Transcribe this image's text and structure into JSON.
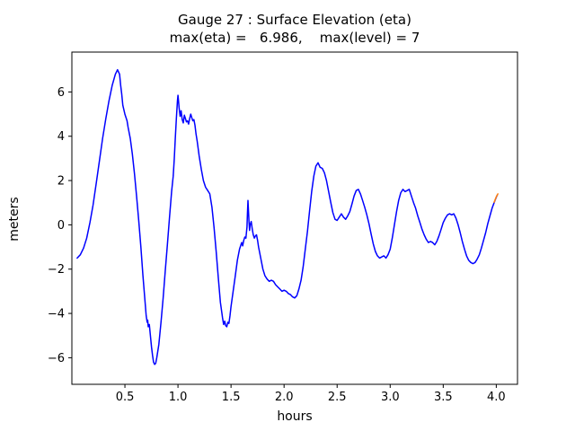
{
  "figure": {
    "title_line1": "Gauge 27 : Surface Elevation (eta)",
    "title_line2": "max(eta) =   6.986,    max(level) = 7"
  },
  "chart_data": {
    "type": "line",
    "title": "Gauge 27 : Surface Elevation (eta)",
    "subtitle": "max(eta) =   6.986,    max(level) = 7",
    "xlabel": "hours",
    "ylabel": "meters",
    "xlim": [
      0.0,
      4.2
    ],
    "ylim": [
      -7.2,
      7.8
    ],
    "grid": false,
    "legend": "none",
    "background_color": "#ffffff",
    "axes_color": "#000000",
    "x_ticks": {
      "values": [
        0.5,
        1.0,
        1.5,
        2.0,
        2.5,
        3.0,
        3.5,
        4.0
      ],
      "labels": [
        "0.5",
        "1.0",
        "1.5",
        "2.0",
        "2.5",
        "3.0",
        "3.5",
        "4.0"
      ]
    },
    "y_ticks": {
      "values": [
        -6,
        -4,
        -2,
        0,
        2,
        4,
        6
      ],
      "labels": [
        "−6",
        "−4",
        "−2",
        "0",
        "2",
        "4",
        "6"
      ]
    },
    "series": [
      {
        "name": "eta",
        "color": "#0000ff",
        "line_width": 1.5,
        "points": [
          [
            0.05,
            -1.5
          ],
          [
            0.08,
            -1.35
          ],
          [
            0.11,
            -1.05
          ],
          [
            0.14,
            -0.6
          ],
          [
            0.17,
            0.1
          ],
          [
            0.2,
            0.9
          ],
          [
            0.23,
            1.9
          ],
          [
            0.26,
            2.9
          ],
          [
            0.29,
            3.9
          ],
          [
            0.32,
            4.8
          ],
          [
            0.35,
            5.6
          ],
          [
            0.38,
            6.3
          ],
          [
            0.41,
            6.8
          ],
          [
            0.43,
            7.0
          ],
          [
            0.45,
            6.8
          ],
          [
            0.46,
            6.3
          ],
          [
            0.47,
            5.9
          ],
          [
            0.48,
            5.4
          ],
          [
            0.5,
            5.0
          ],
          [
            0.52,
            4.7
          ],
          [
            0.53,
            4.4
          ],
          [
            0.55,
            3.9
          ],
          [
            0.57,
            3.2
          ],
          [
            0.59,
            2.3
          ],
          [
            0.61,
            1.3
          ],
          [
            0.63,
            0.2
          ],
          [
            0.65,
            -1.0
          ],
          [
            0.67,
            -2.3
          ],
          [
            0.69,
            -3.5
          ],
          [
            0.7,
            -4.1
          ],
          [
            0.71,
            -4.4
          ],
          [
            0.715,
            -4.3
          ],
          [
            0.72,
            -4.6
          ],
          [
            0.73,
            -4.5
          ],
          [
            0.74,
            -5.0
          ],
          [
            0.75,
            -5.5
          ],
          [
            0.76,
            -5.9
          ],
          [
            0.77,
            -6.2
          ],
          [
            0.78,
            -6.3
          ],
          [
            0.79,
            -6.25
          ],
          [
            0.8,
            -6.0
          ],
          [
            0.82,
            -5.4
          ],
          [
            0.84,
            -4.4
          ],
          [
            0.86,
            -3.3
          ],
          [
            0.88,
            -2.1
          ],
          [
            0.9,
            -0.9
          ],
          [
            0.92,
            0.3
          ],
          [
            0.94,
            1.5
          ],
          [
            0.955,
            2.2
          ],
          [
            0.965,
            3.0
          ],
          [
            0.975,
            3.9
          ],
          [
            0.985,
            4.8
          ],
          [
            0.995,
            5.6
          ],
          [
            1.0,
            5.85
          ],
          [
            1.005,
            5.6
          ],
          [
            1.01,
            5.3
          ],
          [
            1.02,
            4.9
          ],
          [
            1.03,
            5.15
          ],
          [
            1.04,
            4.75
          ],
          [
            1.05,
            4.6
          ],
          [
            1.06,
            4.95
          ],
          [
            1.07,
            4.8
          ],
          [
            1.08,
            4.65
          ],
          [
            1.09,
            4.7
          ],
          [
            1.1,
            4.55
          ],
          [
            1.11,
            4.8
          ],
          [
            1.12,
            5.0
          ],
          [
            1.13,
            4.85
          ],
          [
            1.14,
            4.7
          ],
          [
            1.15,
            4.75
          ],
          [
            1.16,
            4.5
          ],
          [
            1.17,
            4.1
          ],
          [
            1.18,
            3.8
          ],
          [
            1.2,
            3.1
          ],
          [
            1.22,
            2.5
          ],
          [
            1.24,
            2.0
          ],
          [
            1.26,
            1.7
          ],
          [
            1.28,
            1.55
          ],
          [
            1.3,
            1.4
          ],
          [
            1.32,
            0.8
          ],
          [
            1.34,
            -0.1
          ],
          [
            1.36,
            -1.2
          ],
          [
            1.38,
            -2.4
          ],
          [
            1.4,
            -3.5
          ],
          [
            1.42,
            -4.2
          ],
          [
            1.43,
            -4.5
          ],
          [
            1.44,
            -4.35
          ],
          [
            1.45,
            -4.55
          ],
          [
            1.46,
            -4.6
          ],
          [
            1.47,
            -4.4
          ],
          [
            1.48,
            -4.45
          ],
          [
            1.49,
            -4.1
          ],
          [
            1.5,
            -3.7
          ],
          [
            1.52,
            -3.0
          ],
          [
            1.54,
            -2.3
          ],
          [
            1.56,
            -1.6
          ],
          [
            1.58,
            -1.1
          ],
          [
            1.6,
            -0.8
          ],
          [
            1.61,
            -0.95
          ],
          [
            1.62,
            -0.7
          ],
          [
            1.63,
            -0.55
          ],
          [
            1.64,
            -0.6
          ],
          [
            1.65,
            -0.1
          ],
          [
            1.655,
            0.5
          ],
          [
            1.66,
            1.1
          ],
          [
            1.665,
            0.6
          ],
          [
            1.67,
            0.1
          ],
          [
            1.675,
            -0.25
          ],
          [
            1.68,
            0.0
          ],
          [
            1.69,
            0.15
          ],
          [
            1.7,
            -0.2
          ],
          [
            1.71,
            -0.45
          ],
          [
            1.72,
            -0.6
          ],
          [
            1.73,
            -0.5
          ],
          [
            1.74,
            -0.45
          ],
          [
            1.75,
            -0.7
          ],
          [
            1.76,
            -1.0
          ],
          [
            1.78,
            -1.5
          ],
          [
            1.8,
            -2.0
          ],
          [
            1.82,
            -2.3
          ],
          [
            1.84,
            -2.45
          ],
          [
            1.86,
            -2.55
          ],
          [
            1.88,
            -2.5
          ],
          [
            1.9,
            -2.55
          ],
          [
            1.92,
            -2.7
          ],
          [
            1.94,
            -2.8
          ],
          [
            1.96,
            -2.9
          ],
          [
            1.98,
            -3.0
          ],
          [
            2.0,
            -2.95
          ],
          [
            2.02,
            -3.0
          ],
          [
            2.04,
            -3.1
          ],
          [
            2.06,
            -3.15
          ],
          [
            2.08,
            -3.25
          ],
          [
            2.1,
            -3.3
          ],
          [
            2.12,
            -3.2
          ],
          [
            2.14,
            -2.9
          ],
          [
            2.16,
            -2.5
          ],
          [
            2.18,
            -1.9
          ],
          [
            2.2,
            -1.1
          ],
          [
            2.22,
            -0.3
          ],
          [
            2.24,
            0.6
          ],
          [
            2.26,
            1.5
          ],
          [
            2.28,
            2.2
          ],
          [
            2.3,
            2.65
          ],
          [
            2.32,
            2.8
          ],
          [
            2.34,
            2.6
          ],
          [
            2.36,
            2.55
          ],
          [
            2.38,
            2.35
          ],
          [
            2.4,
            2.0
          ],
          [
            2.42,
            1.5
          ],
          [
            2.44,
            1.0
          ],
          [
            2.46,
            0.55
          ],
          [
            2.48,
            0.25
          ],
          [
            2.5,
            0.2
          ],
          [
            2.52,
            0.35
          ],
          [
            2.54,
            0.5
          ],
          [
            2.56,
            0.35
          ],
          [
            2.58,
            0.25
          ],
          [
            2.6,
            0.4
          ],
          [
            2.62,
            0.6
          ],
          [
            2.64,
            0.95
          ],
          [
            2.66,
            1.3
          ],
          [
            2.68,
            1.55
          ],
          [
            2.7,
            1.6
          ],
          [
            2.72,
            1.4
          ],
          [
            2.74,
            1.1
          ],
          [
            2.76,
            0.8
          ],
          [
            2.78,
            0.45
          ],
          [
            2.8,
            0.05
          ],
          [
            2.82,
            -0.4
          ],
          [
            2.84,
            -0.85
          ],
          [
            2.86,
            -1.2
          ],
          [
            2.88,
            -1.4
          ],
          [
            2.9,
            -1.5
          ],
          [
            2.92,
            -1.45
          ],
          [
            2.94,
            -1.4
          ],
          [
            2.96,
            -1.5
          ],
          [
            2.98,
            -1.35
          ],
          [
            3.0,
            -1.1
          ],
          [
            3.02,
            -0.6
          ],
          [
            3.04,
            0.0
          ],
          [
            3.06,
            0.6
          ],
          [
            3.08,
            1.1
          ],
          [
            3.1,
            1.45
          ],
          [
            3.12,
            1.6
          ],
          [
            3.14,
            1.5
          ],
          [
            3.16,
            1.55
          ],
          [
            3.18,
            1.6
          ],
          [
            3.2,
            1.3
          ],
          [
            3.22,
            1.0
          ],
          [
            3.24,
            0.75
          ],
          [
            3.26,
            0.4
          ],
          [
            3.28,
            0.1
          ],
          [
            3.3,
            -0.2
          ],
          [
            3.32,
            -0.45
          ],
          [
            3.34,
            -0.65
          ],
          [
            3.36,
            -0.8
          ],
          [
            3.38,
            -0.75
          ],
          [
            3.4,
            -0.8
          ],
          [
            3.42,
            -0.9
          ],
          [
            3.44,
            -0.75
          ],
          [
            3.46,
            -0.5
          ],
          [
            3.48,
            -0.2
          ],
          [
            3.5,
            0.1
          ],
          [
            3.52,
            0.3
          ],
          [
            3.54,
            0.45
          ],
          [
            3.56,
            0.5
          ],
          [
            3.58,
            0.45
          ],
          [
            3.6,
            0.5
          ],
          [
            3.62,
            0.3
          ],
          [
            3.64,
            0.0
          ],
          [
            3.66,
            -0.35
          ],
          [
            3.68,
            -0.75
          ],
          [
            3.7,
            -1.1
          ],
          [
            3.72,
            -1.4
          ],
          [
            3.74,
            -1.6
          ],
          [
            3.76,
            -1.7
          ],
          [
            3.78,
            -1.75
          ],
          [
            3.8,
            -1.7
          ],
          [
            3.82,
            -1.55
          ],
          [
            3.84,
            -1.35
          ],
          [
            3.86,
            -1.05
          ],
          [
            3.88,
            -0.7
          ],
          [
            3.9,
            -0.35
          ],
          [
            3.92,
            0.05
          ],
          [
            3.94,
            0.4
          ],
          [
            3.96,
            0.75
          ],
          [
            3.98,
            1.0
          ],
          [
            4.0,
            1.25
          ],
          [
            4.01,
            1.35
          ]
        ]
      },
      {
        "name": "level",
        "color": "#ff7f0e",
        "line_width": 1.5,
        "points": [
          [
            3.98,
            1.02
          ],
          [
            4.0,
            1.27
          ],
          [
            4.015,
            1.4
          ]
        ]
      }
    ]
  }
}
